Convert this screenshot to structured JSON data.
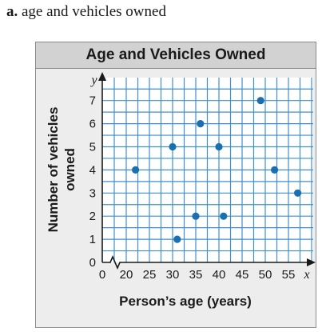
{
  "problem": {
    "letter": "a.",
    "text": "age and vehicles owned"
  },
  "chart_data": {
    "type": "scatter",
    "title": "Age and Vehicles Owned",
    "xlabel": "Person’s age (years)",
    "ylabel": "Number of vehicles owned",
    "x_axis_letter": "x",
    "y_axis_letter": "y",
    "x_ticks": [
      "0",
      "20",
      "25",
      "30",
      "35",
      "40",
      "45",
      "50",
      "55"
    ],
    "y_ticks": [
      "0",
      "1",
      "2",
      "3",
      "4",
      "5",
      "6",
      "7"
    ],
    "xlim": [
      20,
      58
    ],
    "ylim": [
      0,
      7.8
    ],
    "x_axis_break": true,
    "grid": true,
    "colors": {
      "points": "#1a6fb0",
      "grid": "#3f8fcf",
      "axis": "#1a1a1a",
      "plot_background": "#ffffff"
    },
    "points": [
      {
        "x": 22,
        "y": 4
      },
      {
        "x": 30,
        "y": 5
      },
      {
        "x": 31,
        "y": 1
      },
      {
        "x": 35,
        "y": 2
      },
      {
        "x": 36,
        "y": 6
      },
      {
        "x": 40,
        "y": 5
      },
      {
        "x": 41,
        "y": 2
      },
      {
        "x": 49,
        "y": 7
      },
      {
        "x": 52,
        "y": 4
      },
      {
        "x": 57,
        "y": 3
      }
    ]
  }
}
